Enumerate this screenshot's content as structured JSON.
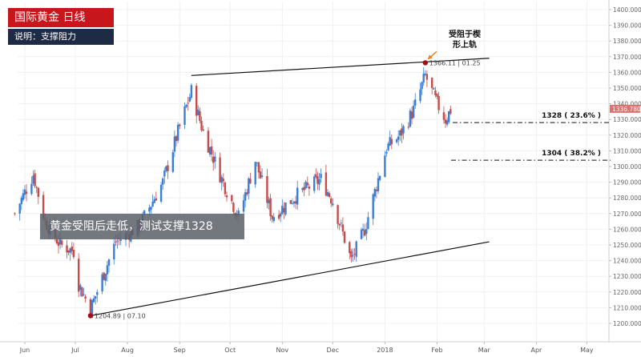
{
  "header": {
    "title": "国际黄金  日线",
    "subtitle": "说明：支撑阻力"
  },
  "callout": "黄金受阻后走低，测试支撑1328",
  "annotations": {
    "resistance_note_line1": "受阻于楔",
    "resistance_note_line2": "形上轨",
    "high_label": "1366.11 | 01.25",
    "low_label": "1204.89 | 07.10",
    "fib1": "1328 ( 23.6% )",
    "fib2": "1304 ( 38.2% )",
    "last_price": "1336.780"
  },
  "colors": {
    "up": "#3a7fd6",
    "down": "#c64b4b",
    "title_bg": "#c8161d",
    "subtitle_bg": "#1d2b45",
    "marker": "#a10f16",
    "price_badge": "#e07070"
  },
  "chart_data": {
    "type": "candlestick",
    "y_axis": {
      "position": "right",
      "range": [
        1195,
        1405
      ],
      "ticks": [
        1200,
        1210,
        1220,
        1230,
        1240,
        1250,
        1260,
        1270,
        1280,
        1290,
        1300,
        1310,
        1320,
        1330,
        1340,
        1350,
        1360,
        1370,
        1380,
        1390,
        1400
      ]
    },
    "x_axis": {
      "labels": [
        "Jun",
        "Jul",
        "Aug",
        "Sep",
        "Oct",
        "Nov",
        "Dec",
        "2018",
        "Feb",
        "Mar",
        "Apr",
        "May"
      ]
    },
    "levels": [
      {
        "label": "1328 ( 23.6% )",
        "value": 1328
      },
      {
        "label": "1304 ( 38.2% )",
        "value": 1304
      }
    ],
    "trendlines": [
      {
        "name": "wedge-upper",
        "from": [
          "2017-09-08",
          1358
        ],
        "to": [
          "2018-03-04",
          1369
        ]
      },
      {
        "name": "wedge-lower",
        "from": [
          "2017-07-10",
          1204.89
        ],
        "to": [
          "2018-03-04",
          1252
        ]
      }
    ],
    "markers": [
      {
        "label": "1366.11 | 01.25",
        "date": "2018-01-25",
        "value": 1366.11
      },
      {
        "label": "1204.89 | 07.10",
        "date": "2017-07-10",
        "value": 1204.89
      }
    ],
    "last_price": 1336.78,
    "anchors": [
      [
        "2017-05-26",
        1270
      ],
      [
        "2017-06-06",
        1295
      ],
      [
        "2017-06-13",
        1265
      ],
      [
        "2017-06-22",
        1250
      ],
      [
        "2017-06-30",
        1246
      ],
      [
        "2017-07-03",
        1225
      ],
      [
        "2017-07-10",
        1209
      ],
      [
        "2017-07-25",
        1252
      ],
      [
        "2017-08-08",
        1262
      ],
      [
        "2017-08-22",
        1290
      ],
      [
        "2017-08-31",
        1322
      ],
      [
        "2017-09-08",
        1348
      ],
      [
        "2017-09-15",
        1322
      ],
      [
        "2017-09-26",
        1292
      ],
      [
        "2017-10-06",
        1268
      ],
      [
        "2017-10-16",
        1304
      ],
      [
        "2017-10-26",
        1268
      ],
      [
        "2017-11-10",
        1282
      ],
      [
        "2017-11-24",
        1292
      ],
      [
        "2017-12-01",
        1278
      ],
      [
        "2017-12-12",
        1240
      ],
      [
        "2017-12-20",
        1260
      ],
      [
        "2018-01-02",
        1312
      ],
      [
        "2018-01-10",
        1320
      ],
      [
        "2018-01-18",
        1336
      ],
      [
        "2018-01-25",
        1358
      ],
      [
        "2018-02-01",
        1340
      ],
      [
        "2018-02-06",
        1330
      ],
      [
        "2018-02-09",
        1336
      ]
    ]
  }
}
